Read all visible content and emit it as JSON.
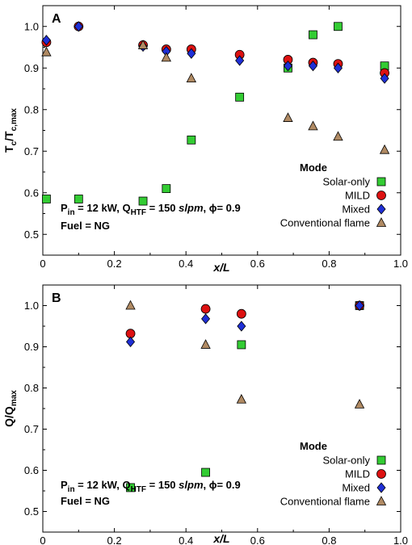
{
  "colors": {
    "Solar-only": "#33cc33",
    "MILD": "#dd1111",
    "Mixed": "#1f2fd6",
    "Conventional flame": "#b08a63"
  },
  "markers": {
    "Solar-only": "square",
    "MILD": "circle",
    "Mixed": "diamond",
    "Conventional flame": "triangle"
  },
  "chart_data": [
    {
      "type": "scatter",
      "panel": "A",
      "xlabel": "x/L",
      "ylabel": {
        "main": "T",
        "main_sub": "c",
        "sep": "/T",
        "sep_sub": "c,max"
      },
      "xlim": [
        0,
        1.0
      ],
      "ylim": [
        0.45,
        1.05
      ],
      "xticks": [
        "0",
        "0.2",
        "0.4",
        "0.6",
        "0.8",
        "1.0"
      ],
      "yticks": [
        "0.5",
        "0.6",
        "0.7",
        "0.8",
        "0.9",
        "1.0"
      ],
      "annotation": {
        "p": "P",
        "p_sub": "in",
        "p_rest": " = 12 kW, Q",
        "q_sub": "HTF",
        "q_rest": " = 150 ",
        "unit": "slpm",
        "phi": ", ϕ= 0.9",
        "fuel": "Fuel = NG"
      },
      "legend": {
        "title": "Mode",
        "position": "bottom-right"
      },
      "series": [
        {
          "name": "Solar-only",
          "x": [
            0.01,
            0.1,
            0.28,
            0.345,
            0.415,
            0.55,
            0.685,
            0.755,
            0.825,
            0.955
          ],
          "y": [
            0.585,
            0.585,
            0.58,
            0.61,
            0.727,
            0.83,
            0.9,
            0.98,
            1.0,
            0.905
          ]
        },
        {
          "name": "MILD",
          "x": [
            0.01,
            0.1,
            0.28,
            0.345,
            0.415,
            0.55,
            0.685,
            0.755,
            0.825,
            0.955
          ],
          "y": [
            0.962,
            1.0,
            0.955,
            0.945,
            0.945,
            0.932,
            0.92,
            0.913,
            0.91,
            0.888
          ]
        },
        {
          "name": "Mixed",
          "x": [
            0.01,
            0.1,
            0.28,
            0.345,
            0.415,
            0.55,
            0.685,
            0.755,
            0.825,
            0.955
          ],
          "y": [
            0.967,
            1.0,
            0.952,
            0.94,
            0.935,
            0.918,
            0.905,
            0.905,
            0.9,
            0.875
          ]
        },
        {
          "name": "Conventional flame",
          "x": [
            0.01,
            0.28,
            0.345,
            0.415,
            0.685,
            0.755,
            0.825,
            0.955
          ],
          "y": [
            0.938,
            0.955,
            0.925,
            0.875,
            0.78,
            0.76,
            0.735,
            0.703
          ]
        }
      ]
    },
    {
      "type": "scatter",
      "panel": "B",
      "xlabel": "x/L",
      "ylabel": {
        "main": "Q/Q",
        "main_sub": "max"
      },
      "xlim": [
        0,
        1.0
      ],
      "ylim": [
        0.45,
        1.05
      ],
      "xticks": [
        "0",
        "0.2",
        "0.4",
        "0.6",
        "0.8",
        "1.0"
      ],
      "yticks": [
        "0.5",
        "0.6",
        "0.7",
        "0.8",
        "0.9",
        "1.0"
      ],
      "annotation": {
        "p": "P",
        "p_sub": "in",
        "p_rest": " = 12 kW, Q",
        "q_sub": "HTF",
        "q_rest": " = 150 ",
        "unit": "slpm",
        "phi": ", ϕ= 0.9",
        "fuel": "Fuel = NG"
      },
      "legend": {
        "title": "Mode",
        "position": "bottom-right"
      },
      "series": [
        {
          "name": "Solar-only",
          "x": [
            0.245,
            0.455,
            0.555,
            0.885
          ],
          "y": [
            0.558,
            0.595,
            0.905,
            1.0
          ]
        },
        {
          "name": "MILD",
          "x": [
            0.245,
            0.455,
            0.555,
            0.885
          ],
          "y": [
            0.932,
            0.992,
            0.98,
            1.0
          ]
        },
        {
          "name": "Mixed",
          "x": [
            0.245,
            0.455,
            0.555,
            0.885
          ],
          "y": [
            0.912,
            0.968,
            0.95,
            1.0
          ]
        },
        {
          "name": "Conventional flame",
          "x": [
            0.245,
            0.455,
            0.555,
            0.885
          ],
          "y": [
            1.0,
            0.905,
            0.772,
            0.76
          ]
        }
      ]
    }
  ]
}
